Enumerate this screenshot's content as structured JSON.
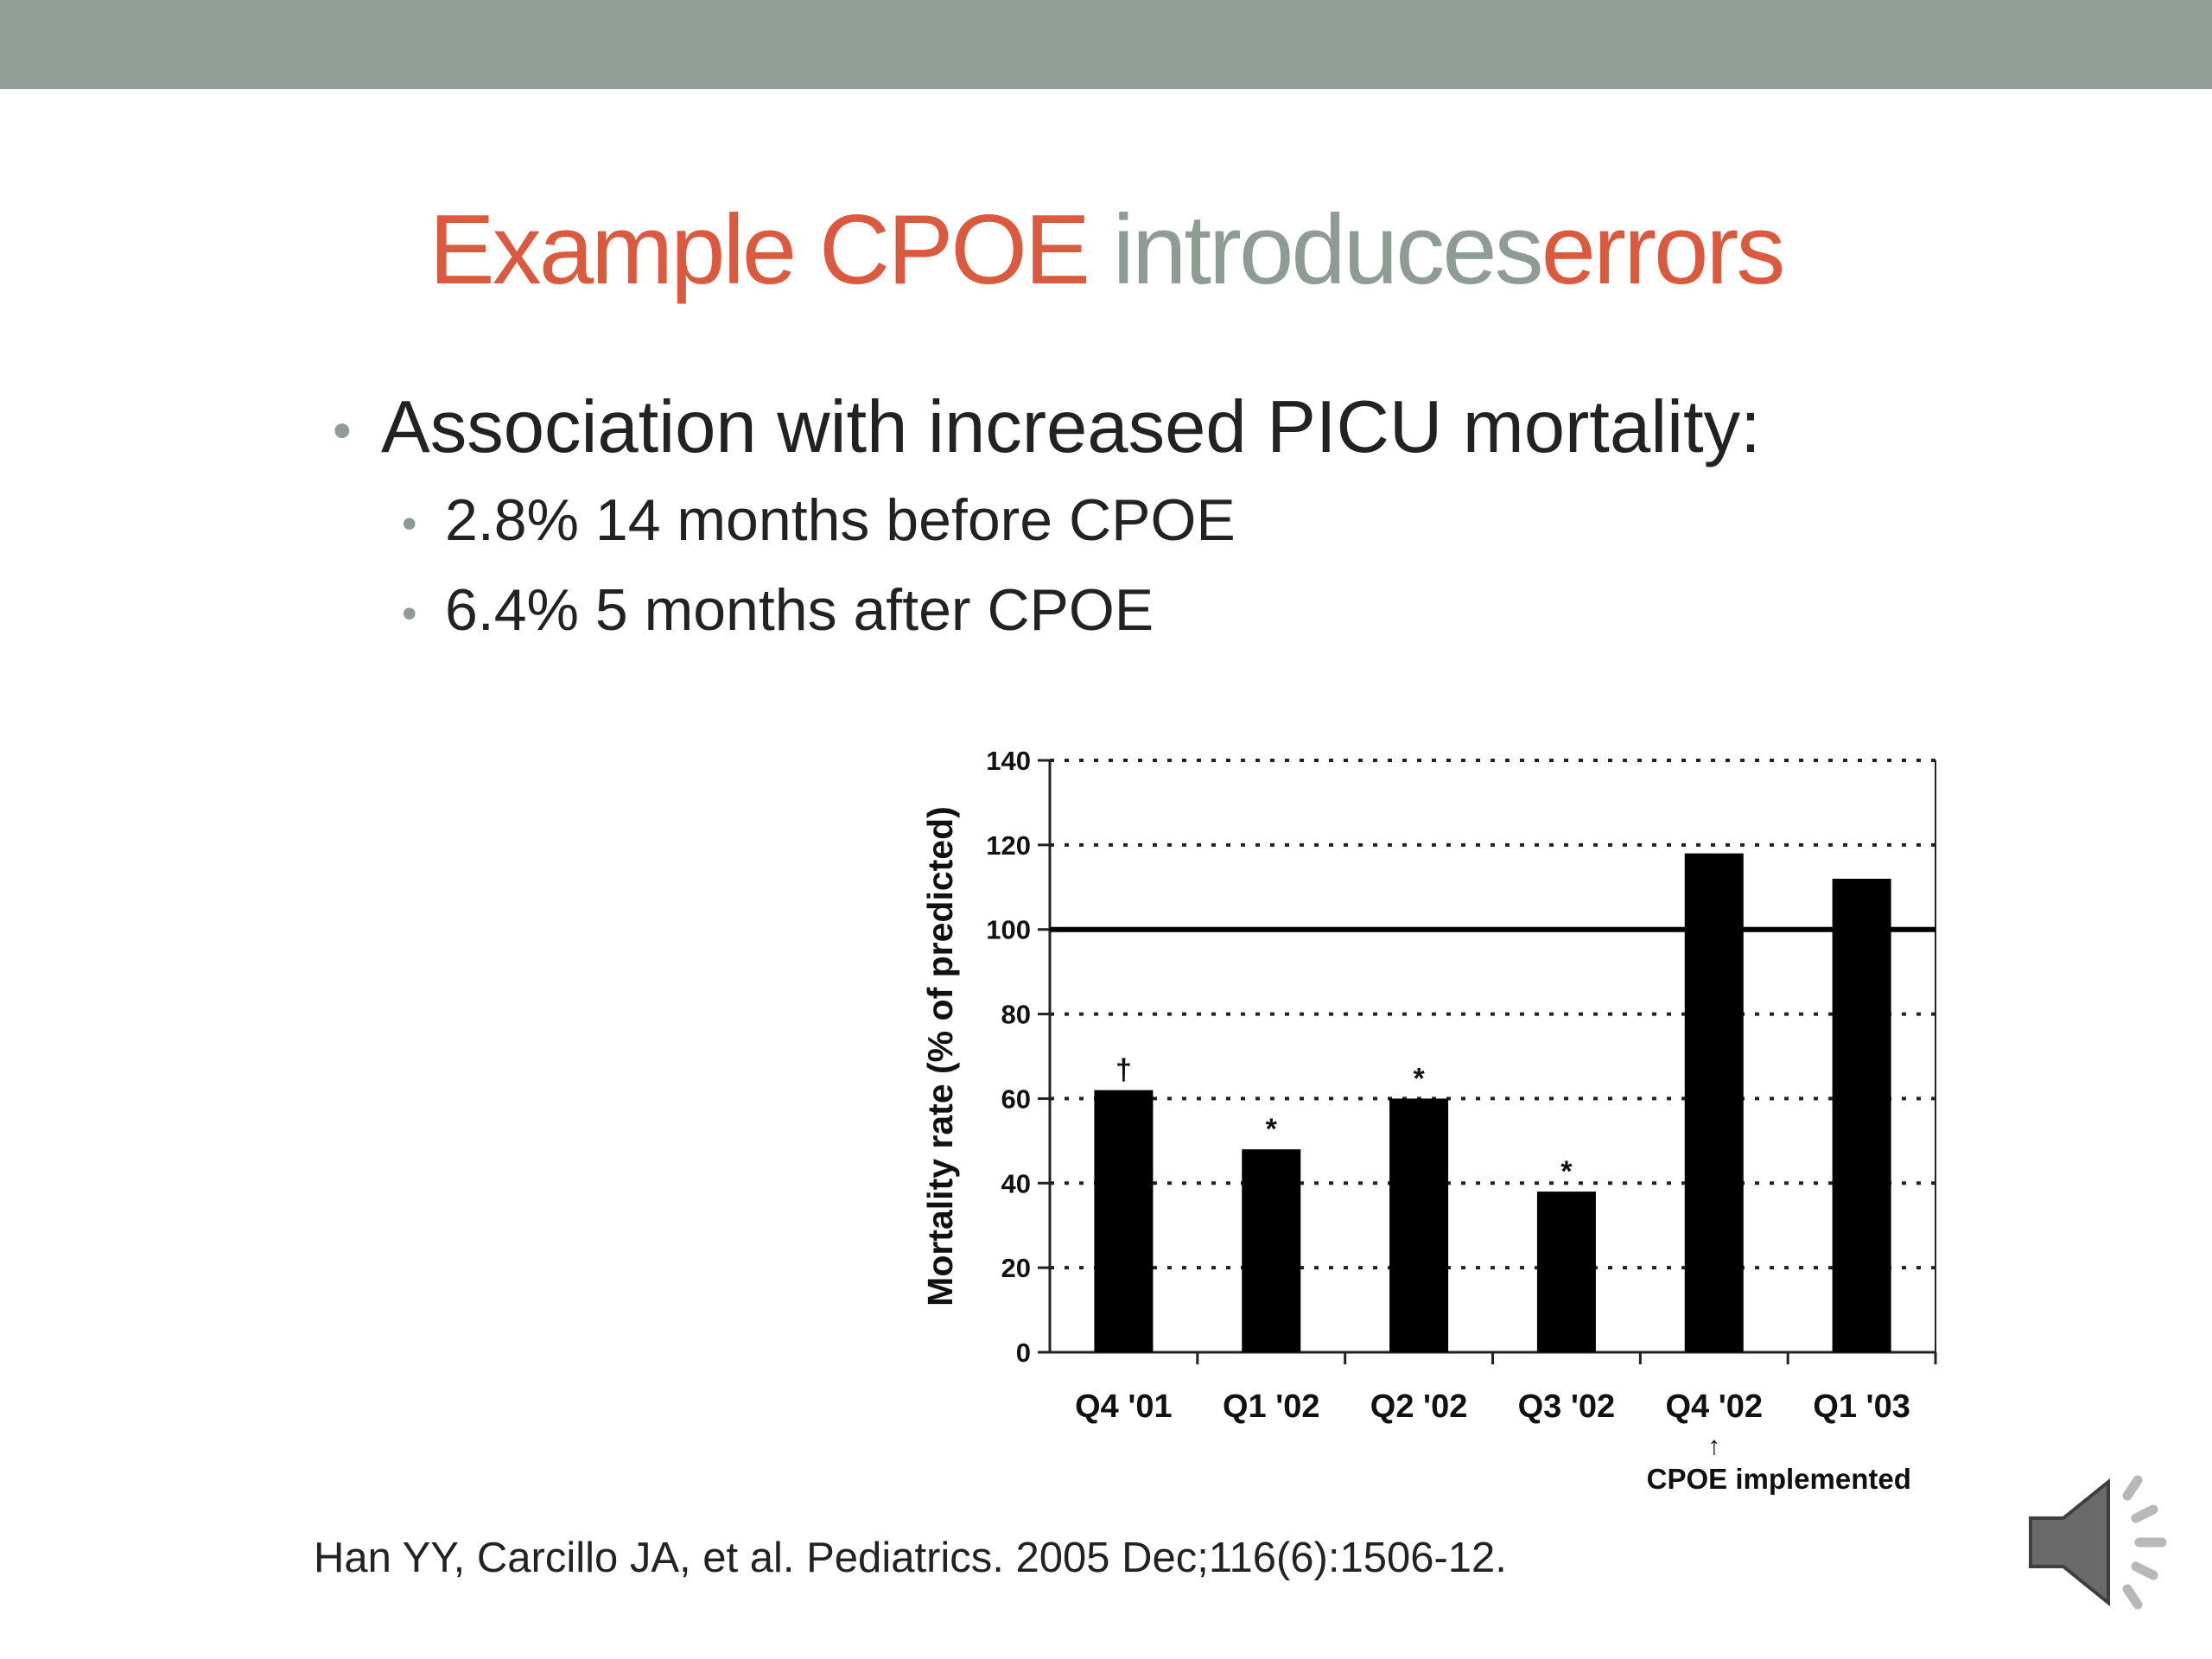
{
  "slide": {
    "title": {
      "part1": "Example CPOE",
      "part2": "introduces",
      "part3": "errors"
    },
    "bullet_main": "Association with increased PICU mortality:",
    "sub_bullets": [
      "2.8% 14 months before CPOE",
      "6.4% 5 months after CPOE"
    ],
    "citation": "Han YY, Carcillo JA, et al. Pediatrics. 2005 Dec;116(6):1506-12.",
    "colors": {
      "band": "#919f97",
      "title_accent": "#d95a3e",
      "title_gray": "#8e9c94"
    },
    "icons": {
      "audio": "speaker-icon"
    }
  },
  "chart_data": {
    "type": "bar",
    "categories": [
      "Q4 '01",
      "Q1 '02",
      "Q2 '02",
      "Q3 '02",
      "Q4 '02",
      "Q1 '03"
    ],
    "values": [
      62,
      48,
      60,
      38,
      118,
      112
    ],
    "markers": [
      "†",
      "*",
      "*",
      "*",
      "",
      ""
    ],
    "ylabel": "Mortality rate (% of predicted)",
    "ylim": [
      0,
      140
    ],
    "yticks": [
      0,
      20,
      40,
      60,
      80,
      100,
      120,
      140
    ],
    "reference_line": 100,
    "annotation": {
      "category": "Q4 '02",
      "arrow": "↑",
      "text": "CPOE implemented"
    },
    "grid": "dotted"
  }
}
